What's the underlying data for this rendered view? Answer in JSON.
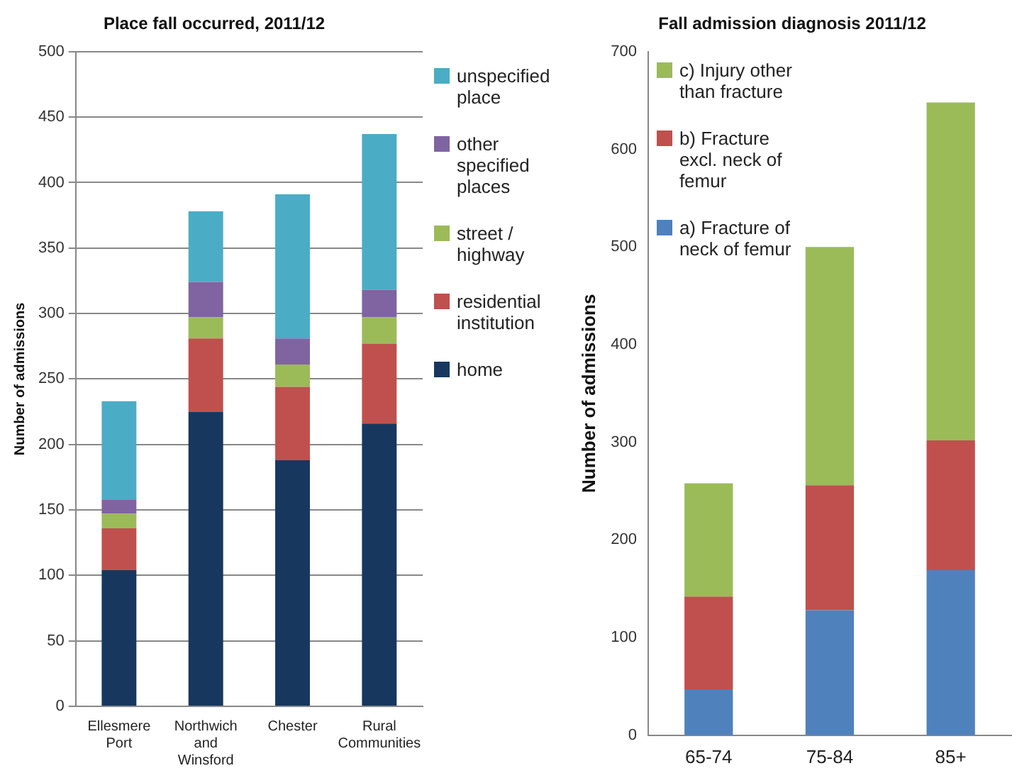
{
  "chart_data": [
    {
      "type": "bar",
      "title": "Place fall occurred, 2011/12",
      "ylabel": "Number of admissions",
      "categories": [
        "Ellesmere Port",
        "Northwich and Winsford",
        "Chester",
        "Rural Communities"
      ],
      "stacked": true,
      "ylim": [
        0,
        500
      ],
      "yticks": [
        0,
        50,
        100,
        150,
        200,
        250,
        300,
        350,
        400,
        450,
        500
      ],
      "grid": "y",
      "legend": "right",
      "series": [
        {
          "name": "home",
          "color": "#17375e",
          "values": [
            104,
            225,
            188,
            216
          ]
        },
        {
          "name": "residential institution",
          "color": "#c0504d",
          "values": [
            32,
            56,
            56,
            61
          ]
        },
        {
          "name": "street / highway",
          "color": "#9bbb59",
          "values": [
            11,
            16,
            17,
            20
          ]
        },
        {
          "name": "other specified places",
          "color": "#8064a2",
          "values": [
            11,
            27,
            20,
            21
          ]
        },
        {
          "name": "unspecified place",
          "color": "#4bacc6",
          "values": [
            75,
            54,
            110,
            119
          ]
        }
      ]
    },
    {
      "type": "bar",
      "title": "Fall admission diagnosis 2011/12",
      "ylabel": "Number of admissions",
      "categories": [
        "65-74",
        "75-84",
        "85+"
      ],
      "stacked": true,
      "ylim": [
        0,
        700
      ],
      "yticks": [
        0,
        100,
        200,
        300,
        400,
        500,
        600,
        700
      ],
      "grid": false,
      "legend": "top left",
      "series": [
        {
          "name": "a) Fracture of neck of femur",
          "color": "#4f81bd",
          "values": [
            47,
            128,
            169
          ]
        },
        {
          "name": "b) Fracture excl. neck of femur",
          "color": "#c0504d",
          "values": [
            95,
            128,
            133
          ]
        },
        {
          "name": "c) Injury other than fracture",
          "color": "#9bbb59",
          "values": [
            116,
            244,
            346
          ]
        }
      ]
    }
  ]
}
